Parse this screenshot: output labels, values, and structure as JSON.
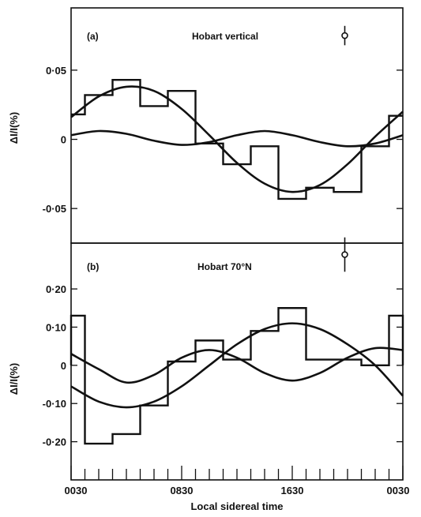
{
  "chart_data": [
    {
      "type": "line",
      "panel_label": "(a)",
      "title": "Hobart vertical",
      "ylabel": "ΔI/I(%)",
      "ylim": [
        -0.075,
        0.095
      ],
      "xlim": [
        0.5,
        24.5
      ],
      "yticks": [
        {
          "value": 0.05,
          "label": "0·05"
        },
        {
          "value": 0,
          "label": "0"
        },
        {
          "value": -0.05,
          "label": "-0·05"
        }
      ],
      "histogram": {
        "bin_edges": [
          0.5,
          1.5,
          3.5,
          5.5,
          7.5,
          9.5,
          11.5,
          13.5,
          15.5,
          17.5,
          19.5,
          21.5,
          23.5,
          24.5
        ],
        "values": [
          0.018,
          0.032,
          0.043,
          0.024,
          0.035,
          -0.003,
          -0.018,
          -0.005,
          -0.043,
          -0.035,
          -0.038,
          -0.005,
          0.017
        ]
      },
      "series": [
        {
          "x": [
            0.5,
            2.5,
            4.5,
            6.5,
            8.5,
            10.5,
            12.5,
            14.5,
            16.5,
            18.5,
            20.5,
            22.5,
            24.5
          ],
          "y": [
            0.016,
            0.031,
            0.038,
            0.035,
            0.022,
            0.003,
            -0.017,
            -0.032,
            -0.038,
            -0.033,
            -0.018,
            0.002,
            0.02
          ]
        },
        {
          "x": [
            0.5,
            2.5,
            4.5,
            6.5,
            8.5,
            10.5,
            12.5,
            14.5,
            16.5,
            18.5,
            20.5,
            22.5,
            24.5
          ],
          "y": [
            0.003,
            0.006,
            0.004,
            -0.001,
            -0.004,
            -0.002,
            0.003,
            0.006,
            0.003,
            -0.002,
            -0.005,
            -0.003,
            0.003
          ]
        }
      ],
      "error_bar": {
        "x": 20.3,
        "y": 0.075,
        "err": 0.007
      }
    },
    {
      "type": "line",
      "panel_label": "(b)",
      "title": "Hobart 70°N",
      "ylabel": "ΔI/I(%)",
      "ylim": [
        -0.3,
        0.32
      ],
      "xlim": [
        0.5,
        24.5
      ],
      "xlabel": "Local sidereal time",
      "yticks": [
        {
          "value": 0.2,
          "label": "0·20"
        },
        {
          "value": 0.1,
          "label": "0·10"
        },
        {
          "value": 0,
          "label": "0"
        },
        {
          "value": -0.1,
          "label": "-0·10"
        },
        {
          "value": -0.2,
          "label": "-0·20"
        }
      ],
      "xticks": [
        {
          "value": 0.5,
          "label": "0030"
        },
        {
          "value": 8.5,
          "label": "0830"
        },
        {
          "value": 16.5,
          "label": "1630"
        },
        {
          "value": 24.5,
          "label": "0030"
        }
      ],
      "histogram": {
        "bin_edges": [
          0.5,
          1.5,
          3.5,
          5.5,
          7.5,
          9.5,
          11.5,
          13.5,
          15.5,
          17.5,
          19.5,
          21.5,
          23.5,
          24.5
        ],
        "values": [
          0.13,
          -0.205,
          -0.18,
          -0.105,
          0.01,
          0.065,
          0.015,
          0.09,
          0.15,
          0.015,
          0.015,
          0.0,
          0.13
        ]
      },
      "series": [
        {
          "x": [
            0.5,
            2.5,
            4.5,
            6.5,
            8.5,
            10.5,
            12.5,
            14.5,
            16.5,
            18.5,
            20.5,
            22.5,
            24.5
          ],
          "y": [
            -0.055,
            -0.095,
            -0.11,
            -0.095,
            -0.055,
            0.0,
            0.055,
            0.095,
            0.11,
            0.095,
            0.055,
            0.0,
            -0.08
          ]
        },
        {
          "x": [
            0.5,
            2.5,
            4.5,
            6.5,
            8.5,
            10.5,
            12.5,
            14.5,
            16.5,
            18.5,
            20.5,
            22.5,
            24.5
          ],
          "y": [
            0.03,
            -0.01,
            -0.045,
            -0.025,
            0.02,
            0.04,
            0.02,
            -0.02,
            -0.04,
            -0.02,
            0.02,
            0.045,
            0.04
          ]
        }
      ],
      "error_bar": {
        "x": 20.3,
        "y": 0.29,
        "err": 0.045
      }
    }
  ]
}
